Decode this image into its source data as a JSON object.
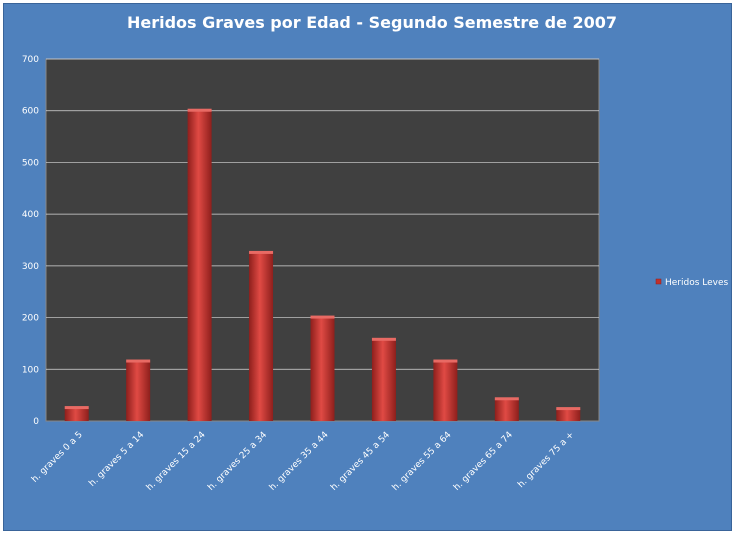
{
  "chart_data": {
    "type": "bar",
    "title": "Heridos Graves por Edad  - Segundo Semestre de 2007",
    "xlabel": "",
    "ylabel": "",
    "ylim": [
      0,
      700
    ],
    "yticks": [
      0,
      100,
      200,
      300,
      400,
      500,
      600,
      700
    ],
    "categories": [
      "h. graves 0 a 5",
      "h. graves 5 a 14",
      "h. graves 15 a 24",
      "h. graves 25 a 34",
      "h. graves 35 a 44",
      "h. graves 45 a 54",
      "h. graves 55 a 64",
      "h. graves 65 a 74",
      "h. graves 75 a +"
    ],
    "series": [
      {
        "name": "Heridos Leves",
        "color": "#c0302c",
        "values": [
          25,
          115,
          600,
          325,
          200,
          157,
          115,
          42,
          23
        ]
      }
    ],
    "grid": true,
    "legend_position": "right",
    "colors": {
      "background": "#4f81bd",
      "plot_area": "#404040",
      "gridline": "#d9d9d9",
      "text": "#ffffff"
    }
  }
}
